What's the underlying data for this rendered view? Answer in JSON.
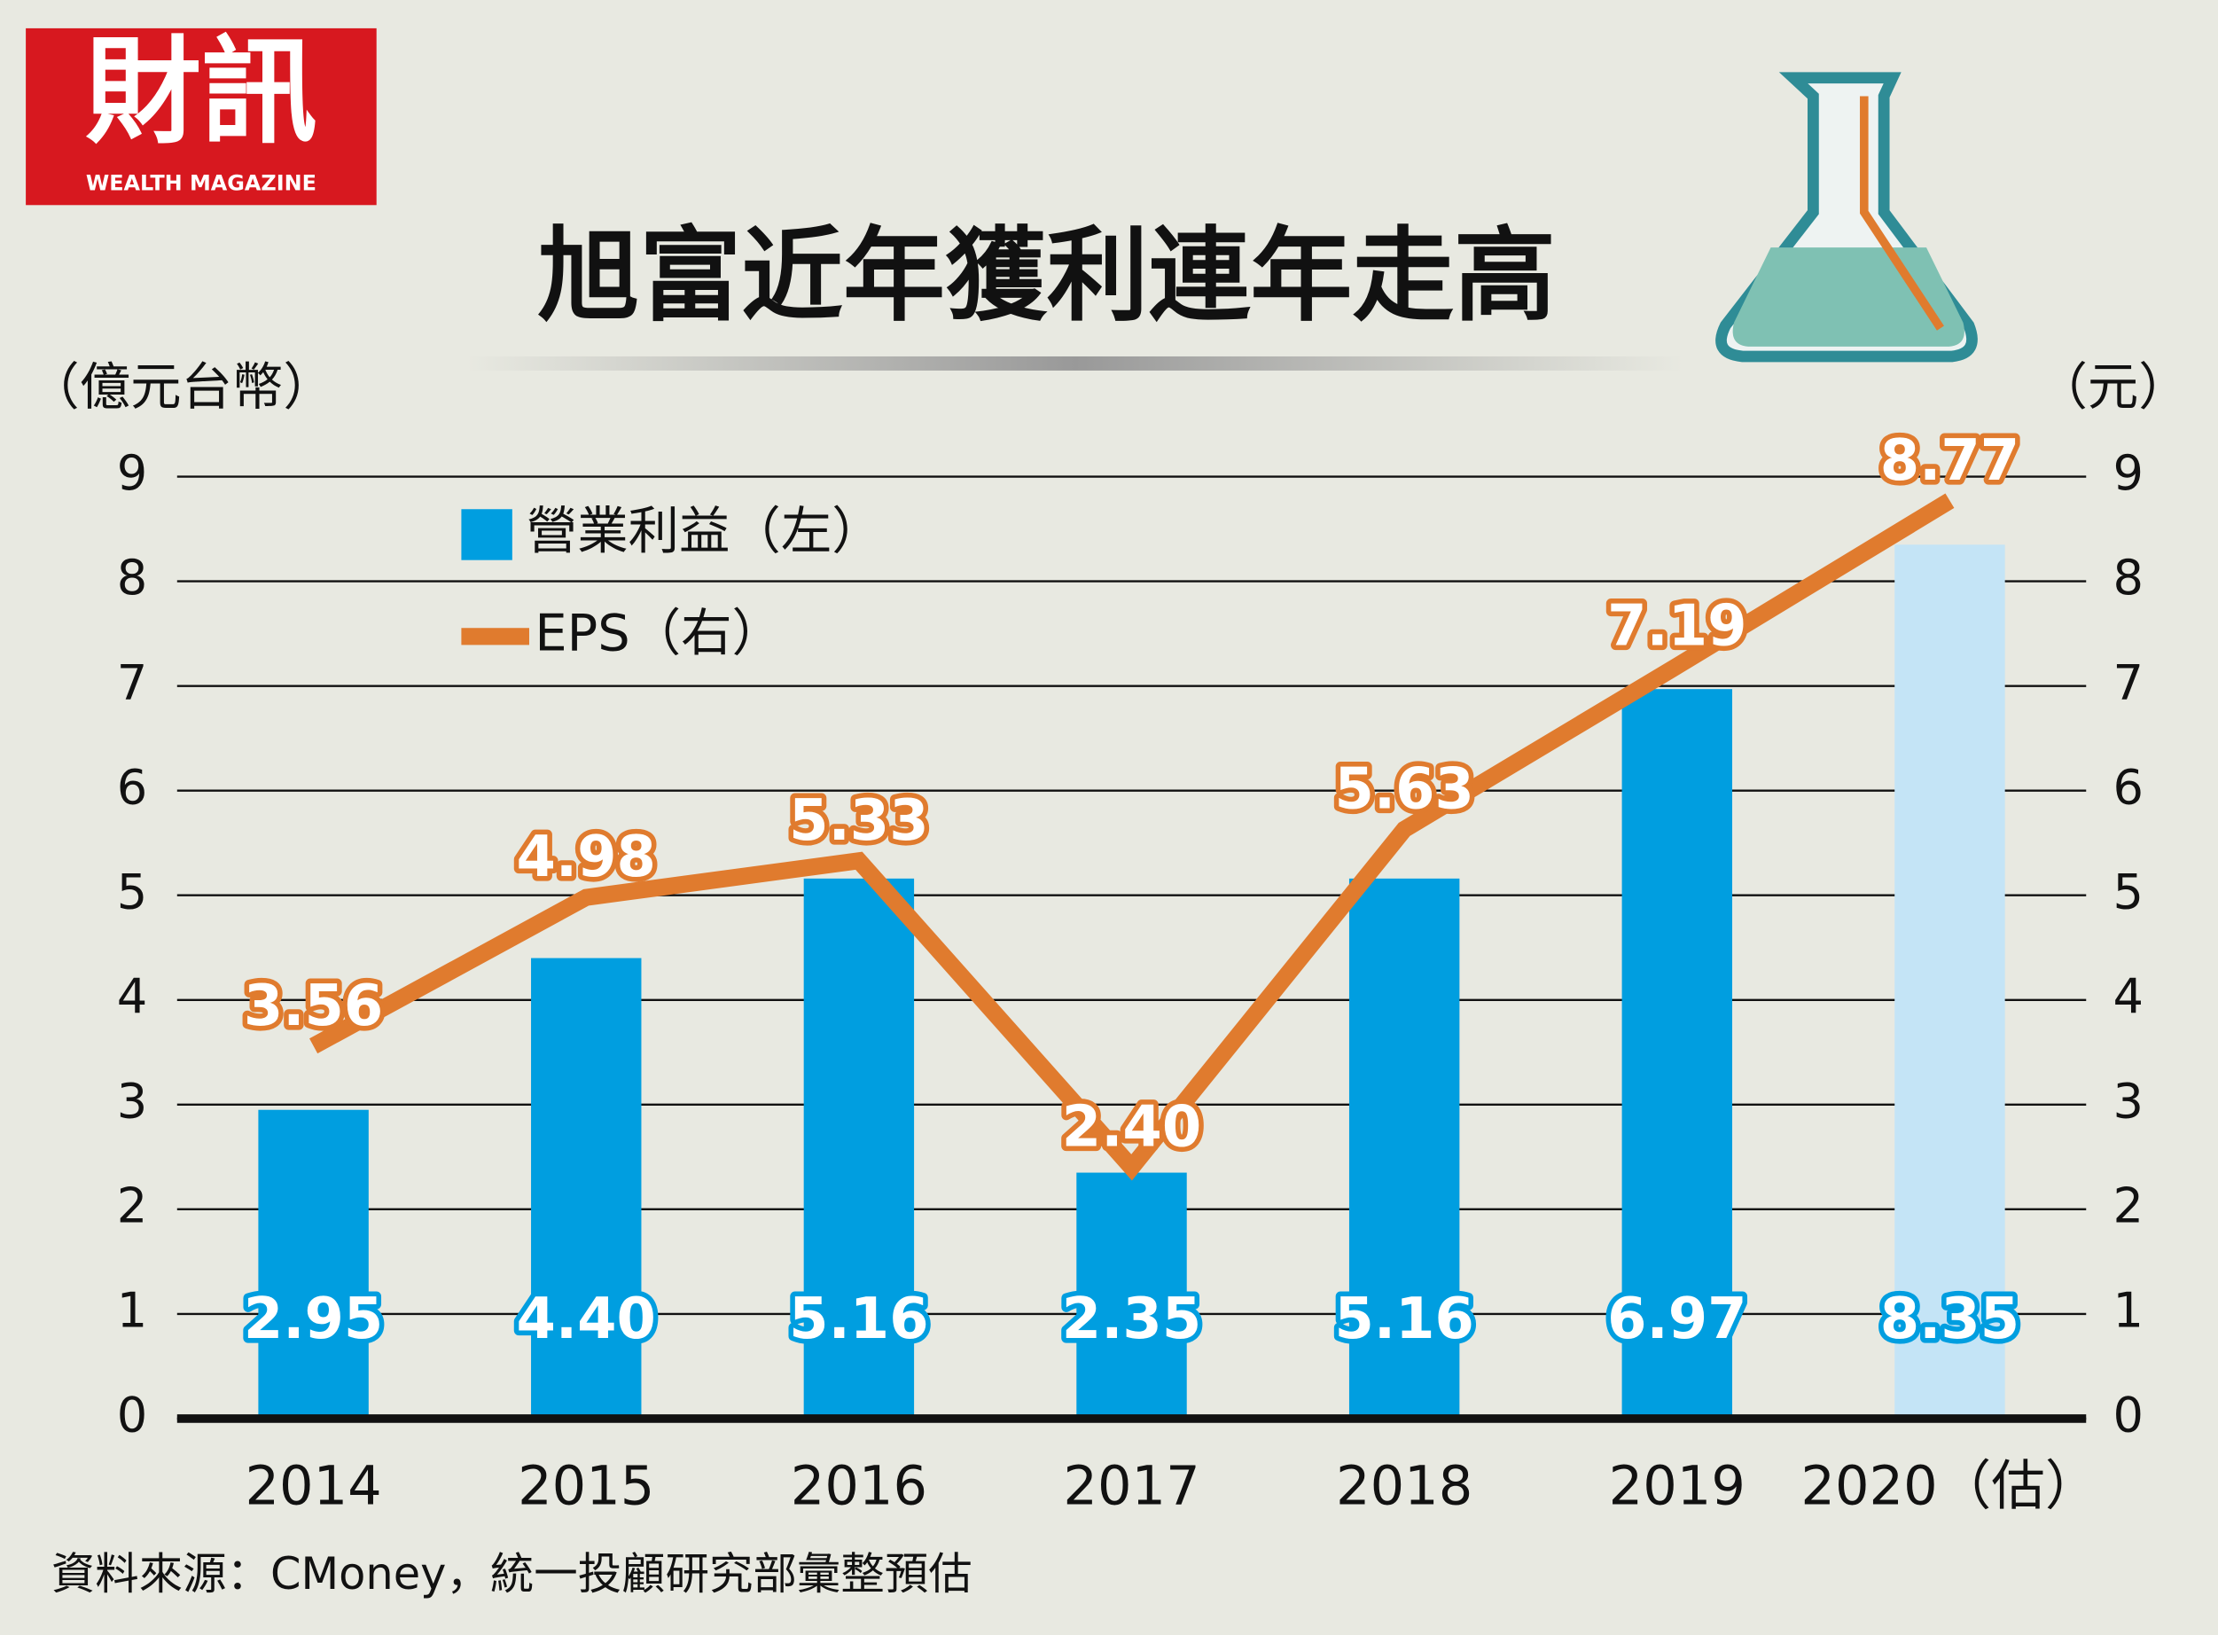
{
  "logo": {
    "name": "財訊",
    "subtitle": "WEALTH MAGAZINE"
  },
  "chart_data": {
    "type": "bar_line",
    "title": "旭富近年獲利連年走高",
    "ylabel": "（億元台幣）",
    "y2label": "（元）",
    "categories": [
      "2014",
      "2015",
      "2016",
      "2017",
      "2018",
      "2019",
      "2020（估）"
    ],
    "series": [
      {
        "name": "營業利益（左）",
        "type": "bar",
        "color": "#009ee0",
        "colors": [
          "#009ee0",
          "#009ee0",
          "#009ee0",
          "#009ee0",
          "#009ee0",
          "#009ee0",
          "#c4e4f6"
        ],
        "values": [
          2.95,
          4.4,
          5.16,
          2.35,
          5.16,
          6.97,
          8.35
        ],
        "value_labels": [
          "2.95",
          "4.40",
          "5.16",
          "2.35",
          "5.16",
          "6.97",
          "8.35"
        ]
      },
      {
        "name": "EPS（右）",
        "type": "line",
        "axis": "y2",
        "color": "#e07b2e",
        "values": [
          3.56,
          4.98,
          5.33,
          2.4,
          5.63,
          7.19,
          8.77
        ],
        "value_labels": [
          "3.56",
          "4.98",
          "5.33",
          "2.40",
          "5.63",
          "7.19",
          "8.77"
        ]
      }
    ],
    "ylim": [
      0,
      9
    ],
    "yticks": [
      0,
      1,
      2,
      3,
      4,
      5,
      6,
      7,
      8,
      9
    ],
    "y2lim": [
      0,
      9
    ],
    "y2ticks": [
      0,
      1,
      2,
      3,
      4,
      5,
      6,
      7,
      8,
      9
    ],
    "grid": true,
    "legend": "top-left",
    "source": "資料來源：CMoney，統一投顧研究部彙整預估"
  }
}
